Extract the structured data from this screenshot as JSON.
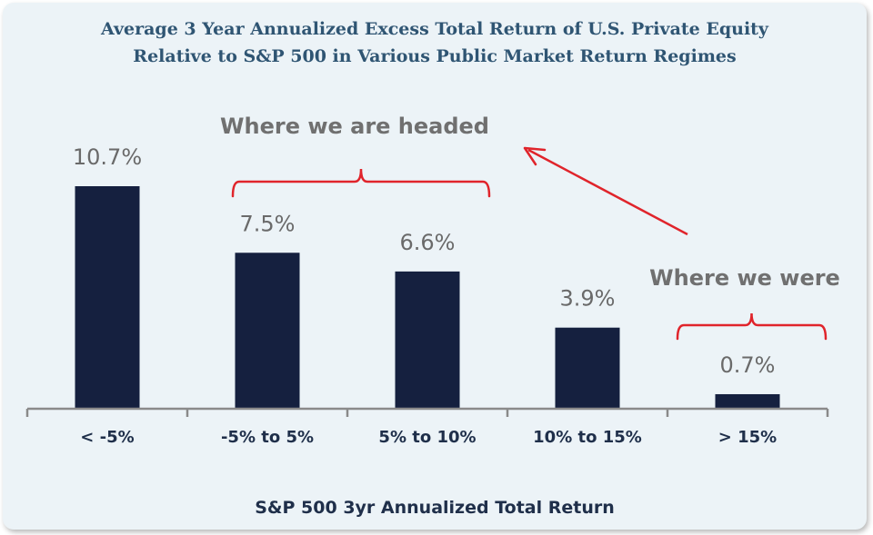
{
  "chart_data": {
    "type": "bar",
    "title": "Average 3 Year Annualized Excess Total Return of U.S. Private Equity",
    "subtitle": "Relative to S&P 500 in Various Public Market Return Regimes",
    "xlabel": "S&P 500 3yr Annualized Total Return",
    "ylabel": "",
    "categories": [
      "< -5%",
      "-5% to 5%",
      "5% to 10%",
      "10% to 15%",
      "> 15%"
    ],
    "values": [
      10.7,
      7.5,
      6.6,
      3.9,
      0.7
    ],
    "data_labels": [
      "10.7%",
      "7.5%",
      "6.6%",
      "3.9%",
      "0.7%"
    ],
    "ylim": [
      0,
      10.7
    ],
    "grid": false,
    "annotations": [
      {
        "text": "Where we are headed",
        "spans": [
          "-5% to 5%",
          "5% to 10%"
        ]
      },
      {
        "text": "Where we were",
        "spans": [
          "> 15%"
        ]
      }
    ],
    "colors": {
      "bar": "#15203f",
      "bracket": "#e0242b",
      "annotation_text": "#707070",
      "title": "#2f5573",
      "background": "#ecf3f7"
    }
  }
}
